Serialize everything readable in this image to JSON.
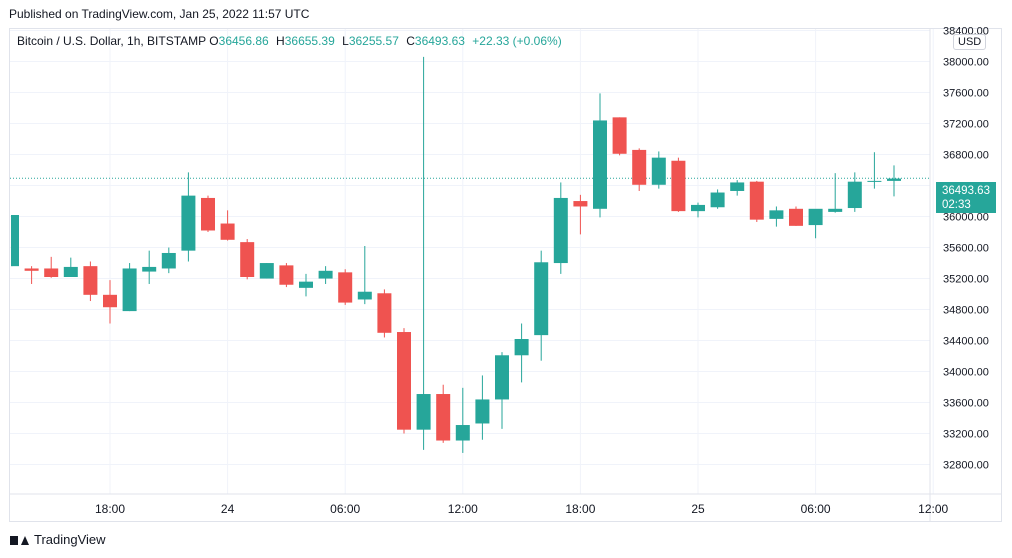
{
  "header": {
    "published": "Published on TradingView.com, Jan 25, 2022 11:57 UTC"
  },
  "legend": {
    "symbol": "Bitcoin / U.S. Dollar, 1h, BITSTAMP",
    "o_label": "O",
    "o": "36456.86",
    "h_label": "H",
    "h": "36655.39",
    "l_label": "L",
    "l": "36255.57",
    "c_label": "C",
    "c": "36493.63",
    "change": "+22.33 (+0.06%)"
  },
  "currency": "USD",
  "last_price": {
    "price": "36493.63",
    "countdown": "02:33"
  },
  "footer": {
    "brand": "TradingView"
  },
  "colors": {
    "up": "#26a69a",
    "down": "#ef5350",
    "grid": "#f0f3fa",
    "text": "#131722"
  },
  "chart_data": {
    "type": "candlestick",
    "title": "Bitcoin / U.S. Dollar, 1h, BITSTAMP",
    "ylim": [
      32420,
      38420
    ],
    "y_ticks": [
      32800,
      33200,
      33600,
      34000,
      34400,
      34800,
      35200,
      35600,
      36000,
      36400,
      36800,
      37200,
      37600,
      38000,
      38400
    ],
    "y_tick_labels": [
      "32800.00",
      "33200.00",
      "33600.00",
      "34000.00",
      "34400.00",
      "34800.00",
      "35200.00",
      "35600.00",
      "36000.00",
      "36400.00",
      "36800.00",
      "37200.00",
      "37600.00",
      "38000.00",
      "38400.00"
    ],
    "x_ticks": [
      {
        "index": 5,
        "label": "18:00"
      },
      {
        "index": 11,
        "label": "24"
      },
      {
        "index": 17,
        "label": "06:00"
      },
      {
        "index": 23,
        "label": "12:00"
      },
      {
        "index": 29,
        "label": "18:00"
      },
      {
        "index": 35,
        "label": "25"
      },
      {
        "index": 41,
        "label": "06:00"
      },
      {
        "index": 47,
        "label": "12:00"
      }
    ],
    "grid": true,
    "last_price_line": 36493.63,
    "candles": [
      {
        "o": 35360,
        "h": 36020,
        "l": 35360,
        "c": 36020
      },
      {
        "o": 35330,
        "h": 35360,
        "l": 35130,
        "c": 35300
      },
      {
        "o": 35330,
        "h": 35480,
        "l": 35210,
        "c": 35220
      },
      {
        "o": 35220,
        "h": 35470,
        "l": 35220,
        "c": 35350
      },
      {
        "o": 35360,
        "h": 35420,
        "l": 34910,
        "c": 34990
      },
      {
        "o": 34990,
        "h": 35180,
        "l": 34620,
        "c": 34830
      },
      {
        "o": 34780,
        "h": 35400,
        "l": 34780,
        "c": 35330
      },
      {
        "o": 35290,
        "h": 35560,
        "l": 35130,
        "c": 35350
      },
      {
        "o": 35330,
        "h": 35600,
        "l": 35270,
        "c": 35530
      },
      {
        "o": 35560,
        "h": 36570,
        "l": 35420,
        "c": 36270
      },
      {
        "o": 36240,
        "h": 36270,
        "l": 35800,
        "c": 35820
      },
      {
        "o": 35910,
        "h": 36080,
        "l": 35690,
        "c": 35700
      },
      {
        "o": 35670,
        "h": 35710,
        "l": 35190,
        "c": 35220
      },
      {
        "o": 35200,
        "h": 35400,
        "l": 35200,
        "c": 35400
      },
      {
        "o": 35370,
        "h": 35400,
        "l": 35090,
        "c": 35120
      },
      {
        "o": 35080,
        "h": 35260,
        "l": 34970,
        "c": 35160
      },
      {
        "o": 35200,
        "h": 35360,
        "l": 35130,
        "c": 35300
      },
      {
        "o": 35280,
        "h": 35320,
        "l": 34860,
        "c": 34890
      },
      {
        "o": 34930,
        "h": 35620,
        "l": 34870,
        "c": 35030
      },
      {
        "o": 35010,
        "h": 35060,
        "l": 34440,
        "c": 34500
      },
      {
        "o": 34510,
        "h": 34560,
        "l": 33200,
        "c": 33250
      },
      {
        "o": 33250,
        "h": 38060,
        "l": 32990,
        "c": 33710
      },
      {
        "o": 33710,
        "h": 33830,
        "l": 33080,
        "c": 33110
      },
      {
        "o": 33110,
        "h": 33790,
        "l": 32950,
        "c": 33310
      },
      {
        "o": 33330,
        "h": 33950,
        "l": 33120,
        "c": 33640
      },
      {
        "o": 33640,
        "h": 34250,
        "l": 33260,
        "c": 34210
      },
      {
        "o": 34210,
        "h": 34620,
        "l": 33860,
        "c": 34420
      },
      {
        "o": 34470,
        "h": 35560,
        "l": 34140,
        "c": 35410
      },
      {
        "o": 35400,
        "h": 36440,
        "l": 35260,
        "c": 36240
      },
      {
        "o": 36200,
        "h": 36280,
        "l": 35770,
        "c": 36130
      },
      {
        "o": 36100,
        "h": 37590,
        "l": 35990,
        "c": 37240
      },
      {
        "o": 37280,
        "h": 37280,
        "l": 36790,
        "c": 36810
      },
      {
        "o": 36860,
        "h": 36880,
        "l": 36330,
        "c": 36410
      },
      {
        "o": 36410,
        "h": 36840,
        "l": 36360,
        "c": 36760
      },
      {
        "o": 36720,
        "h": 36760,
        "l": 36060,
        "c": 36070
      },
      {
        "o": 36070,
        "h": 36180,
        "l": 35990,
        "c": 36150
      },
      {
        "o": 36120,
        "h": 36350,
        "l": 36100,
        "c": 36310
      },
      {
        "o": 36330,
        "h": 36470,
        "l": 36270,
        "c": 36440
      },
      {
        "o": 36450,
        "h": 36460,
        "l": 35930,
        "c": 35960
      },
      {
        "o": 35970,
        "h": 36130,
        "l": 35870,
        "c": 36080
      },
      {
        "o": 36100,
        "h": 36130,
        "l": 35880,
        "c": 35880
      },
      {
        "o": 35890,
        "h": 36090,
        "l": 35720,
        "c": 36100
      },
      {
        "o": 36060,
        "h": 36560,
        "l": 36050,
        "c": 36100
      },
      {
        "o": 36110,
        "h": 36570,
        "l": 36060,
        "c": 36450
      },
      {
        "o": 36460,
        "h": 36830,
        "l": 36360,
        "c": 36460
      },
      {
        "o": 36460,
        "h": 36660,
        "l": 36260,
        "c": 36490
      }
    ]
  }
}
